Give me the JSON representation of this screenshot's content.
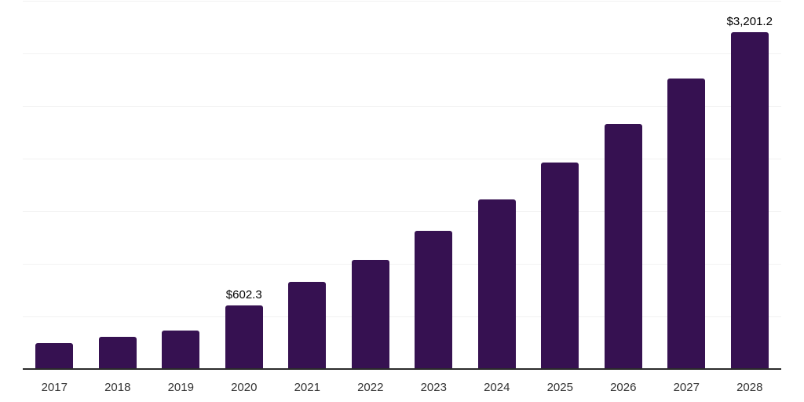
{
  "style": {
    "background": "#ffffff",
    "bar_color": "#361151",
    "gridline_color": "#f2f2f2",
    "axis_line_color": "#2b2b2b",
    "x_tick_label_color": "#333333",
    "data_label_color": "#000000"
  },
  "chart_data": {
    "type": "bar",
    "title": "",
    "xlabel": "",
    "ylabel": "",
    "categories": [
      "2017",
      "2018",
      "2019",
      "2020",
      "2021",
      "2022",
      "2023",
      "2024",
      "2025",
      "2026",
      "2027",
      "2028"
    ],
    "values": [
      250,
      305,
      365,
      602.3,
      830,
      1040,
      1310,
      1610,
      1960,
      2330,
      2760,
      3201.2
    ],
    "data_labels": [
      "",
      "",
      "",
      "$602.3",
      "",
      "",
      "",
      "",
      "",
      "",
      "",
      "$3,201.2"
    ],
    "ylim": [
      0,
      3500
    ],
    "gridline_step": 500,
    "grid": true,
    "legend_position": "none",
    "y_tick_labels_visible": false
  }
}
